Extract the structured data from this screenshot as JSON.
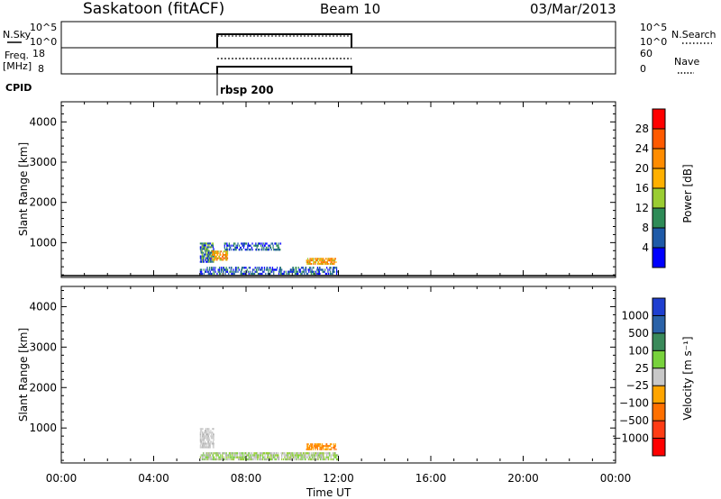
{
  "header": {
    "station": "Saskatoon (fitACF)",
    "beam": "Beam 10",
    "date": "03/Mar/2013"
  },
  "top_panels": {
    "nsky": {
      "label": "N.Sky",
      "left_ticks": [
        "10^5",
        "10^0"
      ],
      "right_ticks": [
        "10^5",
        "10^0"
      ],
      "right_label": "N.Search"
    },
    "freq": {
      "label_line1": "Freq.",
      "label_line2": "[MHz]",
      "left_ticks": [
        "18",
        "8"
      ],
      "right_ticks": [
        "60",
        "0"
      ],
      "right_label": "Nave"
    },
    "cpid": {
      "label": "CPID",
      "program": "rbsp 200"
    }
  },
  "colorbars": {
    "power": {
      "label": "Power [dB]",
      "tick_labels": [
        "28",
        "24",
        "20",
        "16",
        "12",
        "8",
        "4"
      ],
      "colors_top_to_bottom": [
        "#ff0000",
        "#ff5a00",
        "#ff8c00",
        "#ffb000",
        "#9acd32",
        "#2e8b57",
        "#1e5aa8",
        "#0000ff"
      ]
    },
    "velocity": {
      "label": "Velocity [m s⁻¹]",
      "tick_labels": [
        "1000",
        "500",
        "100",
        "25",
        "−25",
        "−100",
        "−500",
        "−1000"
      ],
      "colors_top_to_bottom": [
        "#1f3fd0",
        "#2a62a8",
        "#3a8a5a",
        "#78d23c",
        "#c8c8c8",
        "#ffa500",
        "#ff7000",
        "#ff3c14",
        "#ff0000"
      ]
    }
  },
  "time_axis": {
    "label": "Time UT",
    "tick_labels": [
      "00:00",
      "04:00",
      "08:00",
      "12:00",
      "16:00",
      "20:00",
      "00:00"
    ]
  },
  "chart_data": [
    {
      "type": "heatmap",
      "panel": "power",
      "ylabel": "Slant Range [km]",
      "xlabel": "Time UT",
      "xlim_hours": [
        0,
        24
      ],
      "ylim_km": [
        180,
        4500
      ],
      "y_ticks": [
        1000,
        2000,
        3000,
        4000
      ],
      "data_window_hours": [
        6,
        12
      ],
      "clusters": [
        {
          "t_start": 6.0,
          "t_end": 6.6,
          "r_start": 500,
          "r_end": 1000,
          "level": "blue-green"
        },
        {
          "t_start": 6.5,
          "t_end": 7.2,
          "r_start": 550,
          "r_end": 800,
          "level": "orange"
        },
        {
          "t_start": 10.6,
          "t_end": 11.9,
          "r_start": 450,
          "r_end": 620,
          "level": "orange"
        },
        {
          "t_start": 6.0,
          "t_end": 12.0,
          "r_start": 200,
          "r_end": 400,
          "level": "blue"
        },
        {
          "t_start": 7.0,
          "t_end": 9.5,
          "r_start": 800,
          "r_end": 1000,
          "level": "blue"
        }
      ]
    },
    {
      "type": "heatmap",
      "panel": "velocity",
      "ylabel": "Slant Range [km]",
      "xlabel": "Time UT",
      "xlim_hours": [
        0,
        24
      ],
      "ylim_km": [
        180,
        4500
      ],
      "y_ticks": [
        1000,
        2000,
        3000,
        4000
      ],
      "data_window_hours": [
        6,
        12
      ],
      "clusters": [
        {
          "t_start": 6.0,
          "t_end": 6.6,
          "r_start": 500,
          "r_end": 1000,
          "level": "gray"
        },
        {
          "t_start": 6.0,
          "t_end": 12.0,
          "r_start": 200,
          "r_end": 400,
          "level": "green/gray"
        },
        {
          "t_start": 10.6,
          "t_end": 11.9,
          "r_start": 450,
          "r_end": 620,
          "level": "orange"
        }
      ]
    }
  ]
}
